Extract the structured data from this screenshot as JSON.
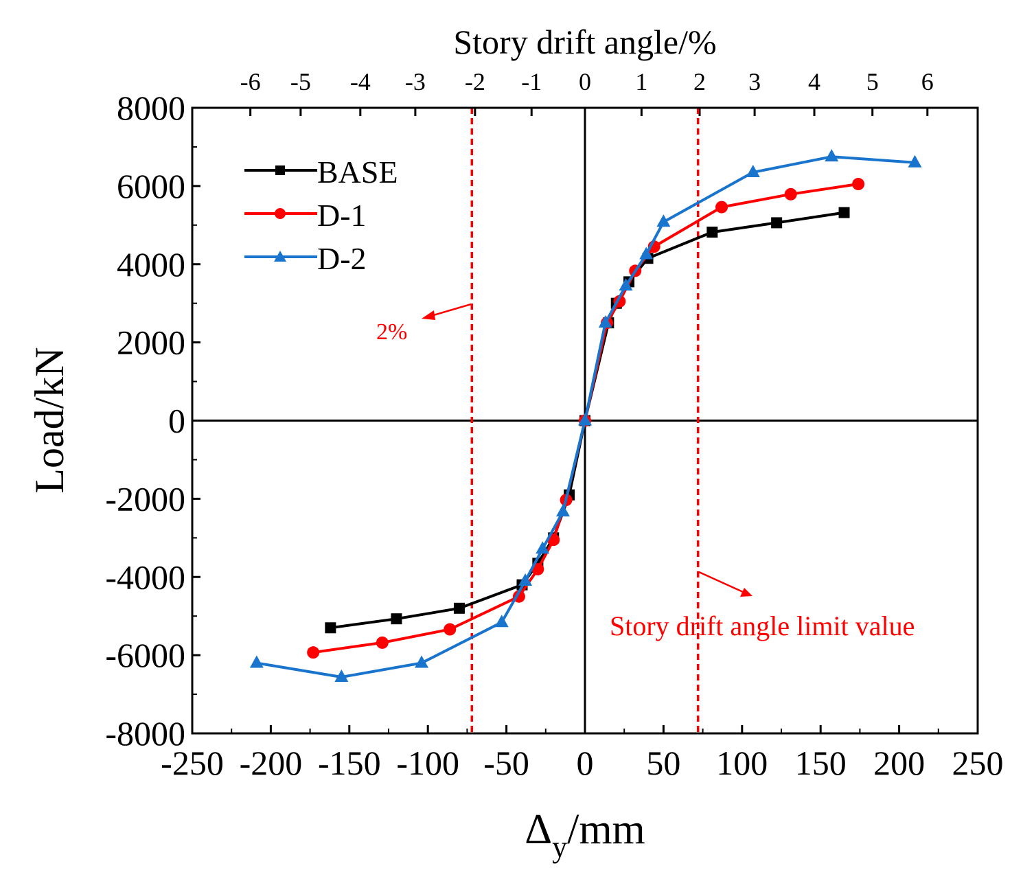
{
  "chart_data": {
    "type": "line",
    "title": "",
    "xlabel_main": "Δ",
    "xlabel_sub": "y",
    "xlabel_unit": "/mm",
    "ylabel": "Load/kN",
    "top_xlabel": "Story drift angle/%",
    "xlim": [
      -250,
      250
    ],
    "ylim": [
      -8000,
      8000
    ],
    "xticks": [
      -250,
      -200,
      -150,
      -100,
      -50,
      0,
      50,
      100,
      150,
      200,
      250
    ],
    "yticks": [
      -8000,
      -6000,
      -4000,
      -2000,
      0,
      2000,
      4000,
      6000,
      8000
    ],
    "top_ticks": [
      {
        "label": "-6",
        "x": -213
      },
      {
        "label": "-5",
        "x": -181
      },
      {
        "label": "-4",
        "x": -143
      },
      {
        "label": "-3",
        "x": -108
      },
      {
        "label": "-2",
        "x": -70
      },
      {
        "label": "-1",
        "x": -34
      },
      {
        "label": "0",
        "x": 0
      },
      {
        "label": "1",
        "x": 36
      },
      {
        "label": "2",
        "x": 73
      },
      {
        "label": "3",
        "x": 108
      },
      {
        "label": "4",
        "x": 146
      },
      {
        "label": "5",
        "x": 183
      },
      {
        "label": "6",
        "x": 218
      }
    ],
    "reference_lines": [
      {
        "name": "neg-2pct",
        "x": -72
      },
      {
        "name": "pos-2pct",
        "x": 72
      }
    ],
    "annotations": [
      {
        "name": "neg-limit-label",
        "text": "2%"
      },
      {
        "name": "pos-limit-label",
        "text": "Story drift angle limit value"
      }
    ],
    "legend_position": "top-left",
    "series": [
      {
        "name": "BASE",
        "color": "#000000",
        "marker": "square",
        "points": [
          [
            -162,
            -5300
          ],
          [
            -120,
            -5070
          ],
          [
            -80,
            -4800
          ],
          [
            -40,
            -4200
          ],
          [
            -30,
            -3650
          ],
          [
            -20,
            -3000
          ],
          [
            -10,
            -1900
          ],
          [
            0,
            0
          ],
          [
            15,
            2500
          ],
          [
            20,
            3000
          ],
          [
            28,
            3550
          ],
          [
            40,
            4150
          ],
          [
            81,
            4820
          ],
          [
            122,
            5060
          ],
          [
            165,
            5320
          ]
        ]
      },
      {
        "name": "D-1",
        "color": "#ff0000",
        "marker": "circle",
        "points": [
          [
            -173,
            -5930
          ],
          [
            -129,
            -5680
          ],
          [
            -86,
            -5340
          ],
          [
            -42,
            -4500
          ],
          [
            -30,
            -3800
          ],
          [
            -20,
            -3050
          ],
          [
            -12,
            -2030
          ],
          [
            0,
            0
          ],
          [
            14,
            2500
          ],
          [
            22,
            3050
          ],
          [
            32,
            3830
          ],
          [
            44,
            4450
          ],
          [
            87,
            5460
          ],
          [
            131,
            5790
          ],
          [
            174,
            6050
          ]
        ]
      },
      {
        "name": "D-2",
        "color": "#1874cd",
        "marker": "triangle",
        "points": [
          [
            -209,
            -6200
          ],
          [
            -155,
            -6560
          ],
          [
            -104,
            -6200
          ],
          [
            -53,
            -5160
          ],
          [
            -38,
            -4100
          ],
          [
            -27,
            -3280
          ],
          [
            -14,
            -2330
          ],
          [
            0,
            0
          ],
          [
            13,
            2500
          ],
          [
            26,
            3450
          ],
          [
            39,
            4250
          ],
          [
            50,
            5080
          ],
          [
            107,
            6350
          ],
          [
            157,
            6750
          ],
          [
            210,
            6600
          ]
        ]
      }
    ]
  }
}
